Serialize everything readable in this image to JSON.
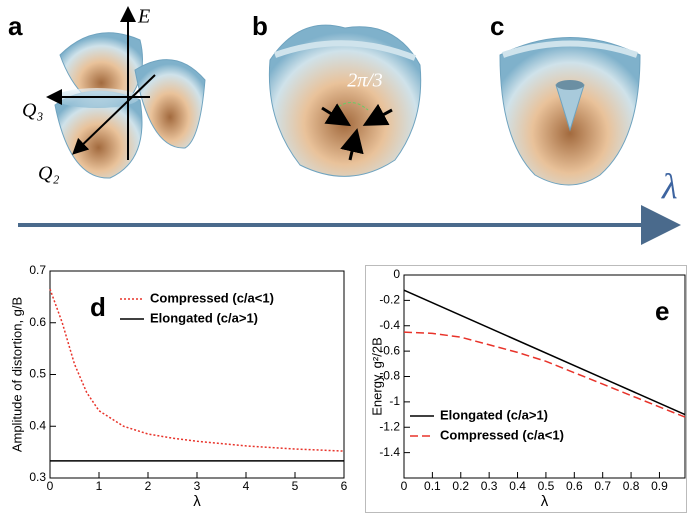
{
  "figure": {
    "panels": [
      {
        "label": "a",
        "axis_labels": [
          "E",
          "Q₃",
          "Q₂"
        ]
      },
      {
        "label": "b",
        "angle": "2π/3"
      },
      {
        "label": "c"
      }
    ],
    "arrow_label": "λ"
  },
  "chart_data": [
    {
      "type": "line",
      "panel_label": "d",
      "xlabel": "λ",
      "ylabel": "Amplitude of distortion, g/B",
      "xlim": [
        0,
        6
      ],
      "ylim": [
        0.3,
        0.7
      ],
      "xticks": [
        0,
        1,
        2,
        3,
        4,
        5,
        6
      ],
      "yticks": [
        0.3,
        0.4,
        0.5,
        0.6,
        0.7
      ],
      "legend": "upper right",
      "series": [
        {
          "name": "Compressed (c/a<1)",
          "color": "#e8332a",
          "dash": "dotted",
          "x": [
            0,
            0.25,
            0.5,
            0.75,
            1,
            1.5,
            2,
            2.5,
            3,
            4,
            5,
            6
          ],
          "values": [
            0.665,
            0.6,
            0.52,
            0.465,
            0.43,
            0.4,
            0.385,
            0.377,
            0.371,
            0.362,
            0.356,
            0.352
          ]
        },
        {
          "name": "Elongated (c/a>1)",
          "color": "#000000",
          "dash": "solid",
          "x": [
            0,
            6
          ],
          "values": [
            0.333,
            0.333
          ]
        }
      ]
    },
    {
      "type": "line",
      "panel_label": "e",
      "xlabel": "λ",
      "ylabel": "Energy, g²/2B",
      "xlim": [
        0,
        0.99
      ],
      "ylim": [
        -1.6,
        0
      ],
      "xticks": [
        0,
        0.1,
        0.2,
        0.3,
        0.4,
        0.5,
        0.6,
        0.7,
        0.8,
        0.9
      ],
      "yticks": [
        0,
        -0.2,
        -0.4,
        -0.6,
        -0.8,
        -1,
        -1.2,
        -1.4
      ],
      "legend": "lower left",
      "series": [
        {
          "name": "Elongated (c/a>1)",
          "color": "#000000",
          "dash": "solid",
          "x": [
            0,
            0.99
          ],
          "values": [
            -0.12,
            -1.1
          ]
        },
        {
          "name": "Compressed (c/a<1)",
          "color": "#e8332a",
          "dash": "dashed",
          "x": [
            0,
            0.1,
            0.2,
            0.3,
            0.4,
            0.5,
            0.6,
            0.7,
            0.8,
            0.9,
            0.99
          ],
          "values": [
            -0.45,
            -0.46,
            -0.49,
            -0.55,
            -0.61,
            -0.68,
            -0.77,
            -0.86,
            -0.95,
            -1.04,
            -1.12
          ]
        }
      ]
    }
  ]
}
